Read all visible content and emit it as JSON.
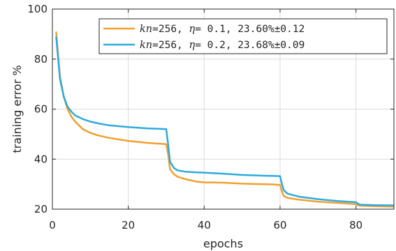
{
  "chart_data": {
    "type": "line",
    "xlabel": "epochs",
    "ylabel": "training error %",
    "xlim": [
      0,
      90
    ],
    "ylim": [
      20,
      100
    ],
    "xticks": [
      0,
      20,
      40,
      60,
      80
    ],
    "yticks": [
      20,
      40,
      60,
      80,
      100
    ],
    "grid": true,
    "legend_position": "top-right",
    "series": [
      {
        "name": "kn=256, η= 0.1, 23.60%±0.12",
        "legend": {
          "kn": "kn",
          "eq1": "=256, ",
          "eta": "η",
          "rest": "= 0.1, 23.60%±0.12"
        },
        "color": "#f0a030",
        "x": [
          1,
          2,
          3,
          4,
          5,
          6,
          8,
          10,
          12,
          15,
          20,
          25,
          28,
          30,
          30.5,
          31,
          32,
          33,
          35,
          38,
          40,
          45,
          50,
          55,
          58,
          60,
          60.5,
          61,
          62,
          65,
          70,
          75,
          80,
          80.5,
          81,
          85,
          90
        ],
        "y": [
          91,
          73,
          65,
          60,
          57,
          55,
          52,
          50.5,
          49.5,
          48.5,
          47.3,
          46.5,
          46.2,
          46,
          42,
          36,
          34,
          33,
          32,
          31,
          30.7,
          30.6,
          30.2,
          30,
          29.9,
          29.7,
          27,
          25.2,
          24.5,
          23.8,
          23,
          22.5,
          22,
          21.6,
          21.4,
          21.2,
          21
        ]
      },
      {
        "name": "kn=256, η= 0.2, 23.68%±0.09",
        "legend": {
          "kn": "kn",
          "eq1": "=256, ",
          "eta": "η",
          "rest": "= 0.2, 23.68%±0.09"
        },
        "color": "#2eaadc",
        "x": [
          1,
          2,
          3,
          4,
          5,
          6,
          8,
          10,
          12,
          15,
          20,
          25,
          28,
          30,
          30.5,
          31,
          32,
          33,
          35,
          38,
          40,
          45,
          50,
          55,
          58,
          60,
          60.5,
          61,
          62,
          65,
          70,
          75,
          80,
          80.5,
          81,
          85,
          90
        ],
        "y": [
          89,
          72,
          65,
          61,
          59,
          57.5,
          56,
          55,
          54.3,
          53.5,
          52.8,
          52.3,
          52.1,
          52,
          46,
          39,
          36.5,
          35.5,
          35,
          34.7,
          34.6,
          34.2,
          33.7,
          33.4,
          33.3,
          33.2,
          30,
          27.5,
          26.2,
          25,
          24,
          23.3,
          22.8,
          22.2,
          21.8,
          21.6,
          21.5
        ]
      }
    ]
  }
}
